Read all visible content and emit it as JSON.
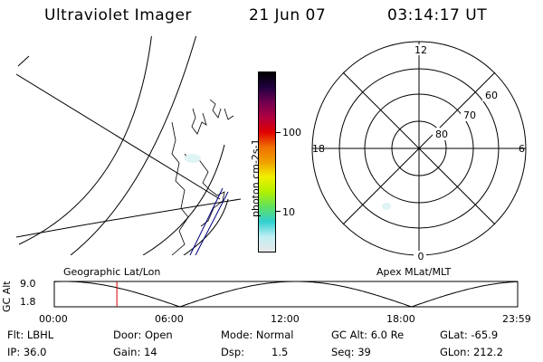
{
  "header": {
    "title": "Ultraviolet Imager",
    "date": "21 Jun 07",
    "time": "03:14:17 UT"
  },
  "colorbar": {
    "unit": "photon cm-2s-1",
    "ticks": [
      "100",
      "10"
    ],
    "colors": [
      "#e8e8e8",
      "#bfeff4",
      "#30d0d0",
      "#60e060",
      "#b0f000",
      "#f0f000",
      "#f0a000",
      "#f07000",
      "#e00000",
      "#b00040",
      "#700050",
      "#200040",
      "#000000"
    ]
  },
  "polar_plot": {
    "labels": {
      "top": "12",
      "bottom": "0",
      "left": "18",
      "right": "6",
      "ring_60": "60",
      "ring_70": "70",
      "ring_80": "80"
    }
  },
  "timeline": {
    "left_label": "Geographic Lat/Lon",
    "right_label": "Apex MLat/MLT",
    "axis_label": "GC Alt",
    "y_ticks": [
      "9.0",
      "1.8"
    ],
    "x_ticks": [
      "00:00",
      "06:00",
      "12:00",
      "18:00",
      "23:59"
    ],
    "x_min_hours": 0,
    "x_max_hours": 24,
    "y_min": 1.8,
    "y_max": 9.0,
    "marker_hours": 3.24,
    "marker_color": "#d00000"
  },
  "info": {
    "filter": "Flt: LBHL",
    "door": "Door: Open",
    "mode": "Mode: Normal",
    "gc_alt": "GC Alt: 6.0 Re",
    "glat": "GLat: -65.9",
    "ip": "IP: 36.0",
    "gain": "Gain: 14",
    "dsp_label": "Dsp:",
    "dsp_value": "1.5",
    "seq": "Seq: 39",
    "glon": "GLon: 212.2"
  }
}
